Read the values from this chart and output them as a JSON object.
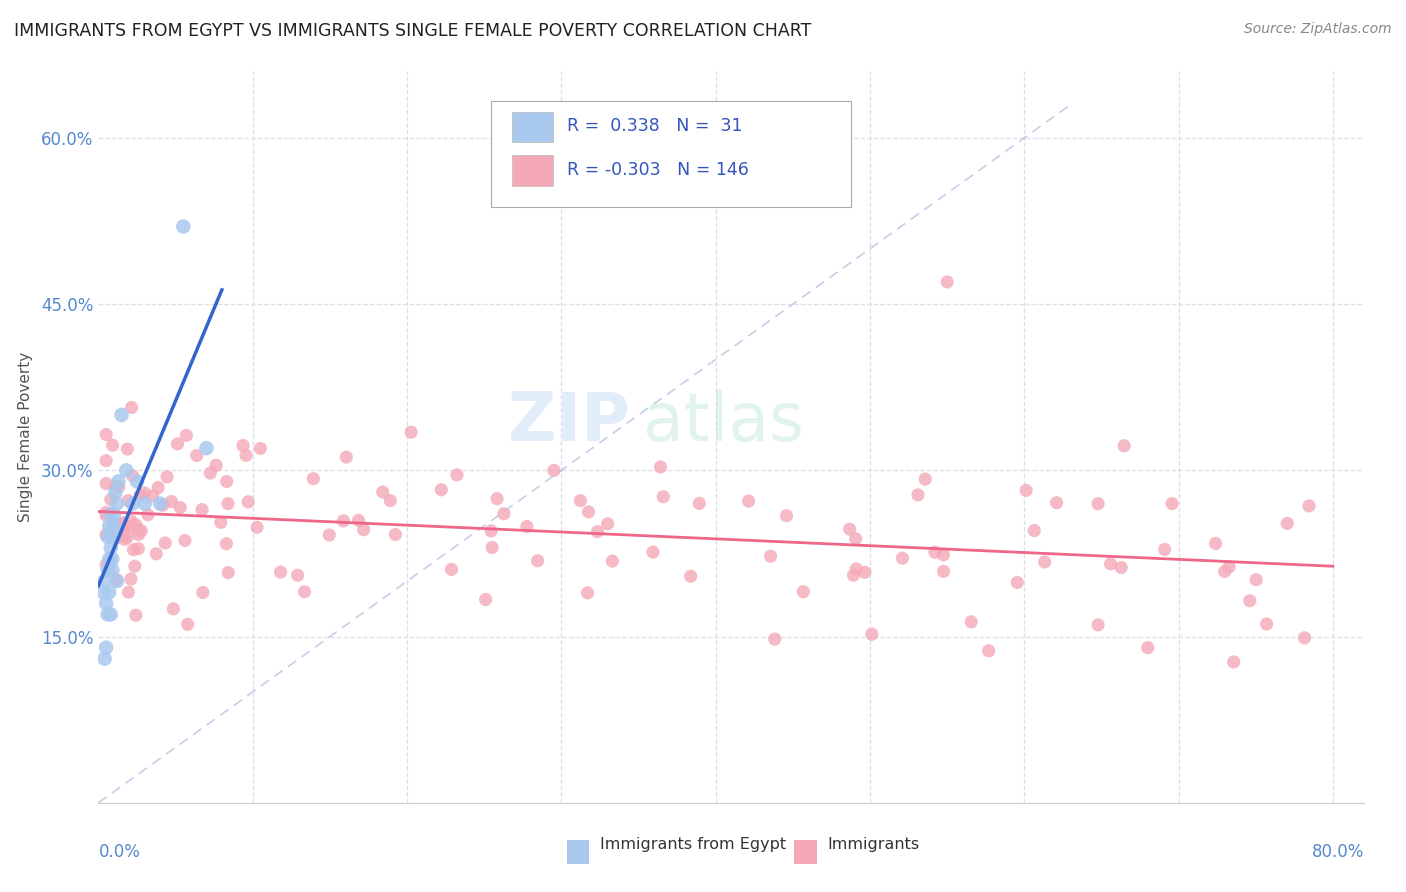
{
  "title": "IMMIGRANTS FROM EGYPT VS IMMIGRANTS SINGLE FEMALE POVERTY CORRELATION CHART",
  "source": "Source: ZipAtlas.com",
  "ylabel": "Single Female Poverty",
  "watermark_zip": "ZIP",
  "watermark_atlas": "atlas",
  "legend_label1": "Immigrants from Egypt",
  "legend_label2": "Immigrants",
  "R1": 0.338,
  "N1": 31,
  "R2": -0.303,
  "N2": 146,
  "xlim": [
    0.0,
    0.82
  ],
  "ylim": [
    0.0,
    0.66
  ],
  "ytick_vals": [
    0.15,
    0.3,
    0.45,
    0.6
  ],
  "ytick_labels": [
    "15.0%",
    "30.0%",
    "45.0%",
    "60.0%"
  ],
  "color_blue": "#A8C8EE",
  "color_pink": "#F4A8B8",
  "line_blue": "#3366CC",
  "line_pink": "#EE6688",
  "diag_color": "#AABBDD",
  "bg_color": "#FFFFFF",
  "grid_color": "#DDDDEE",
  "title_color": "#222222",
  "ytick_color": "#5588CC",
  "xtick_color": "#5588CC",
  "source_color": "#888888"
}
